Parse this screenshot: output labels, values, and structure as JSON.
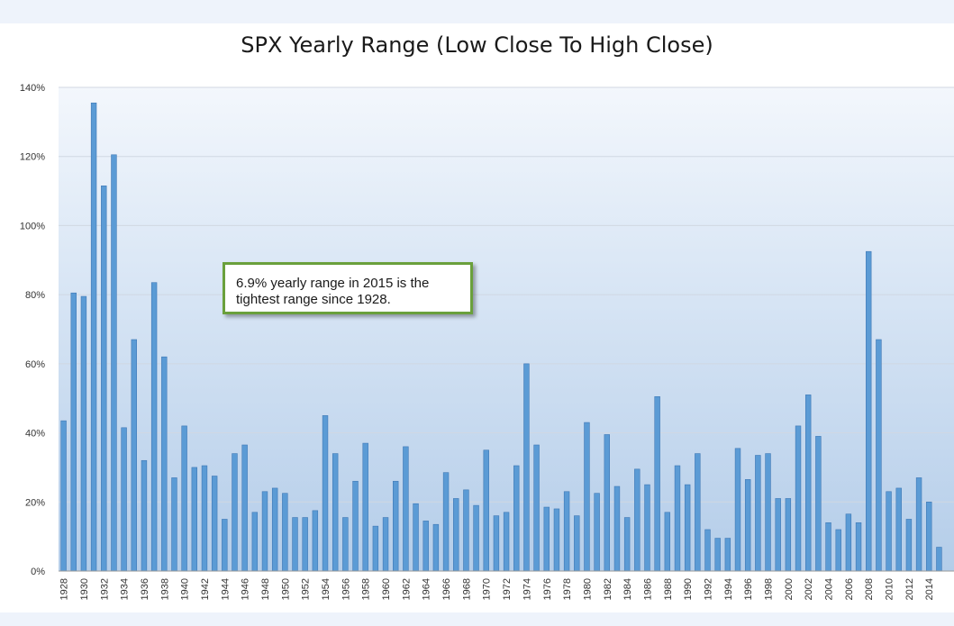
{
  "chart_data": {
    "type": "bar",
    "title": "SPX Yearly Range (Low Close To High Close)",
    "xlabel": "",
    "ylabel": "",
    "ylim": [
      0,
      140
    ],
    "yticks": [
      "0%",
      "20%",
      "40%",
      "60%",
      "80%",
      "100%",
      "120%",
      "140%"
    ],
    "ytick_values": [
      0,
      20,
      40,
      60,
      80,
      100,
      120,
      140
    ],
    "categories": [
      "1928",
      "1929",
      "1930",
      "1931",
      "1932",
      "1933",
      "1934",
      "1935",
      "1936",
      "1937",
      "1938",
      "1939",
      "1940",
      "1941",
      "1942",
      "1943",
      "1944",
      "1945",
      "1946",
      "1947",
      "1948",
      "1949",
      "1950",
      "1951",
      "1952",
      "1953",
      "1954",
      "1955",
      "1956",
      "1957",
      "1958",
      "1959",
      "1960",
      "1961",
      "1962",
      "1963",
      "1964",
      "1965",
      "1966",
      "1967",
      "1968",
      "1969",
      "1970",
      "1971",
      "1972",
      "1973",
      "1974",
      "1975",
      "1976",
      "1977",
      "1978",
      "1979",
      "1980",
      "1981",
      "1982",
      "1983",
      "1984",
      "1985",
      "1986",
      "1987",
      "1988",
      "1989",
      "1990",
      "1991",
      "1992",
      "1993",
      "1994",
      "1995",
      "1996",
      "1997",
      "1998",
      "1999",
      "2000",
      "2001",
      "2002",
      "2003",
      "2004",
      "2005",
      "2006",
      "2007",
      "2008",
      "2009",
      "2010",
      "2011",
      "2012",
      "2013",
      "2014",
      "2015"
    ],
    "labeled_categories": [
      "1928",
      "1930",
      "1932",
      "1934",
      "1936",
      "1938",
      "1940",
      "1942",
      "1944",
      "1946",
      "1948",
      "1950",
      "1952",
      "1954",
      "1956",
      "1958",
      "1960",
      "1962",
      "1964",
      "1966",
      "1968",
      "1970",
      "1972",
      "1974",
      "1976",
      "1978",
      "1980",
      "1982",
      "1984",
      "1986",
      "1988",
      "1990",
      "1992",
      "1994",
      "1996",
      "1998",
      "2000",
      "2002",
      "2004",
      "2006",
      "2008",
      "2010",
      "2012",
      "2014"
    ],
    "values": [
      43.5,
      80.5,
      79.5,
      135.5,
      111.5,
      120.5,
      41.5,
      67,
      32,
      83.5,
      62,
      27,
      42,
      30,
      30.5,
      27.5,
      15,
      34,
      36.5,
      17,
      23,
      24,
      22.5,
      15.5,
      15.5,
      17.5,
      45,
      34,
      15.5,
      26,
      37,
      13,
      15.5,
      26,
      36,
      19.5,
      14.5,
      13.5,
      28.5,
      21,
      23.5,
      19,
      35,
      16,
      17,
      30.5,
      60,
      36.5,
      18.5,
      18,
      23,
      16,
      43,
      22.5,
      39.5,
      24.5,
      15.5,
      29.5,
      25,
      50.5,
      17,
      30.5,
      25,
      34,
      12,
      9.5,
      9.5,
      35.5,
      26.5,
      33.5,
      34,
      21,
      21,
      42,
      51,
      39,
      14,
      12,
      16.5,
      14,
      92.5,
      67,
      23,
      24,
      15,
      27,
      20,
      6.9
    ],
    "grid": true,
    "color": "#5b9bd5",
    "annotation": "6.9% yearly range in 2015 is the tightest range since 1928."
  }
}
